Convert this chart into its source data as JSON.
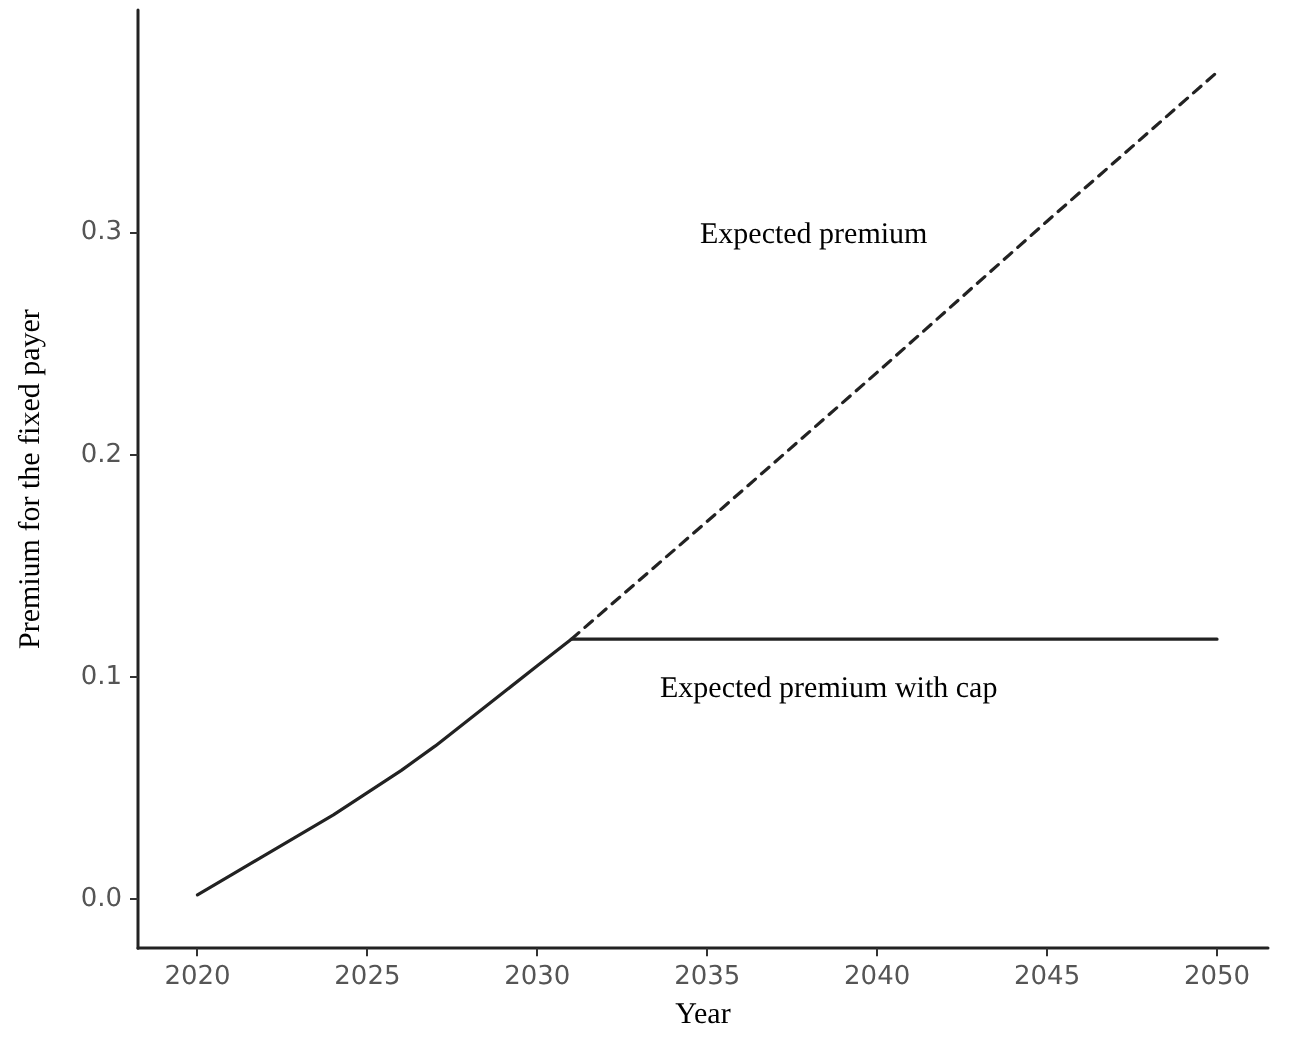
{
  "chart_data": {
    "type": "line",
    "xlabel": "Year",
    "ylabel": "Premium for the fixed payer",
    "xlim": [
      2018.25,
      2051.5
    ],
    "xticks": [
      2020,
      2025,
      2030,
      2035,
      2040,
      2045,
      2050
    ],
    "ylim": [
      -0.022,
      0.4
    ],
    "yticks": [
      {
        "value": 0,
        "label": "0.0"
      },
      0.1,
      0.2,
      0.3
    ],
    "grid": false,
    "legend": false,
    "marker": "none",
    "series": [
      {
        "name": "Expected premium with cap",
        "color": "#222222",
        "line_style": "solid",
        "x": [
          2020,
          2021,
          2022,
          2023,
          2024,
          2025,
          2026,
          2027,
          2028,
          2029,
          2030,
          2031,
          2035,
          2040,
          2045,
          2050
        ],
        "values": [
          0.002,
          0.011,
          0.02,
          0.029,
          0.038,
          0.048,
          0.058,
          0.069,
          0.081,
          0.093,
          0.105,
          0.117,
          0.117,
          0.117,
          0.117,
          0.117
        ]
      },
      {
        "name": "Expected premium",
        "color": "#222222",
        "line_style": "dashed",
        "x": [
          2031,
          2035,
          2040,
          2045,
          2050
        ],
        "values": [
          0.117,
          0.17,
          0.237,
          0.305,
          0.372
        ]
      }
    ]
  }
}
